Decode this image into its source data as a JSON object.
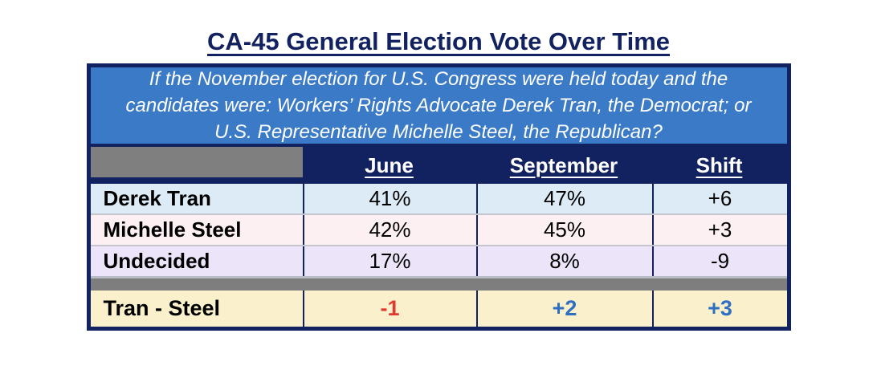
{
  "title": "CA-45 General Election Vote Over Time",
  "question": "If the November election for U.S. Congress were held today and the candidates were: Workers’ Rights Advocate Derek Tran, the Democrat; or U.S. Representative Michelle Steel, the Republican?",
  "table": {
    "columns": [
      "June",
      "September",
      "Shift"
    ],
    "rows": [
      {
        "label": "Derek Tran",
        "june": "41%",
        "september": "47%",
        "shift": "+6"
      },
      {
        "label": "Michelle Steel",
        "june": "42%",
        "september": "45%",
        "shift": "+3"
      },
      {
        "label": "Undecided",
        "june": "17%",
        "september": "8%",
        "shift": "-9"
      }
    ],
    "summary": {
      "label": "Tran - Steel",
      "june": "-1",
      "september": "+2",
      "shift": "+3"
    }
  },
  "colors": {
    "navy": "#12215f",
    "question_blue": "#3a7ac7",
    "row_tran": "#dcebf5",
    "row_steel": "#fdf0f3",
    "row_undecided": "#ece5f9",
    "summary_cream": "#faf1cc",
    "gray_separator": "#7e7e7e",
    "negative_red": "#e0392f",
    "positive_blue": "#2f6fc1"
  },
  "chart_data": {
    "type": "table",
    "title": "CA-45 General Election Vote Over Time",
    "subtitle": "If the November election for U.S. Congress were held today and the candidates were: Workers’ Rights Advocate Derek Tran, the Democrat; or U.S. Representative Michelle Steel, the Republican?",
    "columns": [
      "",
      "June",
      "September",
      "Shift"
    ],
    "rows": [
      [
        "Derek Tran",
        "41%",
        "47%",
        "+6"
      ],
      [
        "Michelle Steel",
        "42%",
        "45%",
        "+3"
      ],
      [
        "Undecided",
        "17%",
        "8%",
        "-9"
      ],
      [
        "Tran - Steel",
        "-1",
        "+2",
        "+3"
      ]
    ]
  }
}
